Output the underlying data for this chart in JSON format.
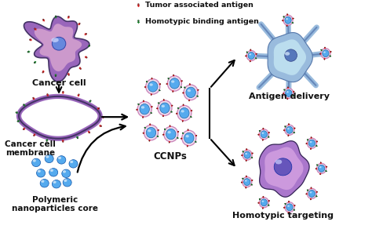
{
  "background_color": "#ffffff",
  "legend": {
    "tumor_antigen_color": "#dd2222",
    "homotypic_antigen_color": "#228833",
    "tumor_antigen_label": "Tumor associated antigen",
    "homotypic_antigen_label": "Homotypic binding antigen"
  },
  "labels": {
    "cancer_cell": "Cancer cell",
    "cancer_cell_membrane": "Cancer cell\nmembrane",
    "polymeric_core": "Polymeric\nnanoparticles core",
    "ccnps": "CCNPs",
    "antigen_delivery": "Antigen delivery",
    "homotypic_targeting": "Homotypic targeting"
  },
  "colors": {
    "cancer_cell_outer": "#9966bb",
    "cancer_cell_inner": "#cc99cc",
    "cancer_cell_nucleus": "#6688dd",
    "cancer_cell_nucleus_inner": "#99aaee",
    "membrane_purple": "#9966bb",
    "membrane_dark": "#443366",
    "nanoparticle_blue": "#55aaee",
    "nanoparticle_ring": "#cc88bb",
    "dendritic_blue_outer": "#99bbdd",
    "dendritic_blue_inner": "#bbddee",
    "dendritic_nucleus": "#5577bb",
    "target_cell_outer": "#aa77cc",
    "target_cell_inner": "#cc99dd",
    "target_cell_nucleus": "#6655bb",
    "text_color": "#111111",
    "arrow_color": "#222222"
  }
}
